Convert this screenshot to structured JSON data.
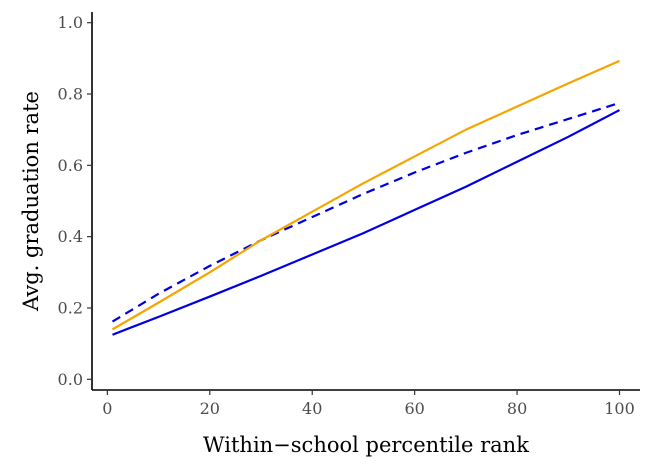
{
  "chart_data": {
    "type": "line",
    "title": "",
    "xlabel": "Within−school percentile rank",
    "ylabel": "Avg. graduation rate",
    "xlim": [
      -3,
      104
    ],
    "ylim": [
      -0.03,
      1.03
    ],
    "xticks": [
      0,
      20,
      40,
      60,
      80,
      100
    ],
    "yticks": [
      0.0,
      0.2,
      0.4,
      0.6,
      0.8,
      1.0
    ],
    "xtick_labels": [
      "0",
      "20",
      "40",
      "60",
      "80",
      "100"
    ],
    "ytick_labels": [
      "0.0",
      "0.2",
      "0.4",
      "0.6",
      "0.8",
      "1.0"
    ],
    "grid": false,
    "legend": "none",
    "series": [
      {
        "color": "#0000e0",
        "dash": "solid",
        "x": [
          1,
          10,
          20,
          30,
          40,
          50,
          60,
          70,
          80,
          90,
          100
        ],
        "y": [
          0.125,
          0.175,
          0.232,
          0.29,
          0.35,
          0.41,
          0.475,
          0.54,
          0.61,
          0.68,
          0.755
        ]
      },
      {
        "color": "#0000e0",
        "dash": "dashed",
        "x": [
          1,
          10,
          20,
          30,
          40,
          50,
          60,
          70,
          80,
          90,
          100
        ],
        "y": [
          0.162,
          0.24,
          0.318,
          0.39,
          0.455,
          0.52,
          0.58,
          0.635,
          0.685,
          0.73,
          0.775
        ]
      },
      {
        "color": "#f5a500",
        "dash": "solid",
        "x": [
          1,
          10,
          20,
          30,
          40,
          50,
          60,
          70,
          80,
          90,
          100
        ],
        "y": [
          0.14,
          0.215,
          0.3,
          0.39,
          0.47,
          0.55,
          0.625,
          0.7,
          0.765,
          0.83,
          0.893
        ]
      }
    ]
  }
}
